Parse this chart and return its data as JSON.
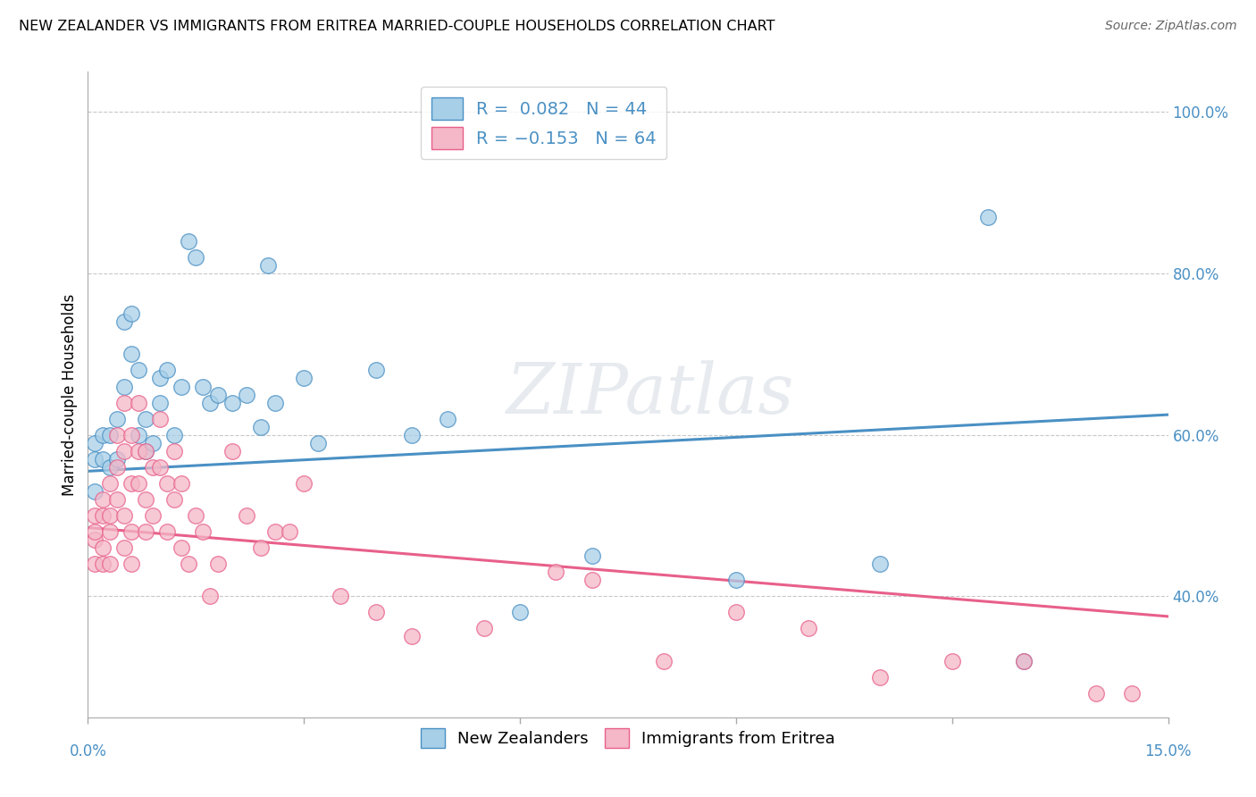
{
  "title": "NEW ZEALANDER VS IMMIGRANTS FROM ERITREA MARRIED-COUPLE HOUSEHOLDS CORRELATION CHART",
  "source": "Source: ZipAtlas.com",
  "ylabel": "Married-couple Households",
  "legend_label1": "R =  0.082   N = 44",
  "legend_label2": "R = −0.153   N = 64",
  "legend_bottom1": "New Zealanders",
  "legend_bottom2": "Immigrants from Eritrea",
  "color_blue": "#a8cfe8",
  "color_pink": "#f4b8c8",
  "color_blue_line": "#4a90c4",
  "color_pink_line": "#e8608a",
  "color_blue_dark": "#4a90c4",
  "color_pink_dark": "#e8608a",
  "xlim": [
    0.0,
    0.15
  ],
  "ylim": [
    0.25,
    1.05
  ],
  "blue_x": [
    0.001,
    0.001,
    0.001,
    0.002,
    0.002,
    0.003,
    0.003,
    0.004,
    0.004,
    0.005,
    0.005,
    0.006,
    0.006,
    0.007,
    0.007,
    0.008,
    0.008,
    0.009,
    0.01,
    0.01,
    0.011,
    0.012,
    0.013,
    0.014,
    0.015,
    0.016,
    0.017,
    0.018,
    0.02,
    0.022,
    0.024,
    0.025,
    0.026,
    0.03,
    0.032,
    0.04,
    0.045,
    0.05,
    0.06,
    0.07,
    0.09,
    0.11,
    0.125,
    0.13
  ],
  "blue_y": [
    0.57,
    0.53,
    0.59,
    0.6,
    0.57,
    0.56,
    0.6,
    0.57,
    0.62,
    0.66,
    0.74,
    0.7,
    0.75,
    0.68,
    0.6,
    0.58,
    0.62,
    0.59,
    0.67,
    0.64,
    0.68,
    0.6,
    0.66,
    0.84,
    0.82,
    0.66,
    0.64,
    0.65,
    0.64,
    0.65,
    0.61,
    0.81,
    0.64,
    0.67,
    0.59,
    0.68,
    0.6,
    0.62,
    0.38,
    0.45,
    0.42,
    0.44,
    0.87,
    0.32
  ],
  "pink_x": [
    0.001,
    0.001,
    0.001,
    0.001,
    0.002,
    0.002,
    0.002,
    0.002,
    0.003,
    0.003,
    0.003,
    0.003,
    0.004,
    0.004,
    0.004,
    0.005,
    0.005,
    0.005,
    0.005,
    0.006,
    0.006,
    0.006,
    0.006,
    0.007,
    0.007,
    0.007,
    0.008,
    0.008,
    0.008,
    0.009,
    0.009,
    0.01,
    0.01,
    0.011,
    0.011,
    0.012,
    0.012,
    0.013,
    0.013,
    0.014,
    0.015,
    0.016,
    0.017,
    0.018,
    0.02,
    0.022,
    0.024,
    0.026,
    0.028,
    0.03,
    0.035,
    0.04,
    0.045,
    0.055,
    0.065,
    0.07,
    0.08,
    0.09,
    0.1,
    0.11,
    0.12,
    0.13,
    0.14,
    0.145
  ],
  "pink_y": [
    0.47,
    0.5,
    0.44,
    0.48,
    0.5,
    0.52,
    0.46,
    0.44,
    0.54,
    0.48,
    0.44,
    0.5,
    0.56,
    0.6,
    0.52,
    0.64,
    0.58,
    0.5,
    0.46,
    0.6,
    0.54,
    0.48,
    0.44,
    0.64,
    0.58,
    0.54,
    0.58,
    0.52,
    0.48,
    0.56,
    0.5,
    0.62,
    0.56,
    0.54,
    0.48,
    0.58,
    0.52,
    0.54,
    0.46,
    0.44,
    0.5,
    0.48,
    0.4,
    0.44,
    0.58,
    0.5,
    0.46,
    0.48,
    0.48,
    0.54,
    0.4,
    0.38,
    0.35,
    0.36,
    0.43,
    0.42,
    0.32,
    0.38,
    0.36,
    0.3,
    0.32,
    0.32,
    0.28,
    0.28
  ],
  "blue_line_x0": 0.0,
  "blue_line_y0": 0.555,
  "blue_line_x1": 0.15,
  "blue_line_y1": 0.625,
  "pink_line_x0": 0.0,
  "pink_line_y0": 0.485,
  "pink_line_x1": 0.15,
  "pink_line_y1": 0.375,
  "watermark": "ZIPatlas",
  "background_color": "#ffffff",
  "grid_color": "#c8c8c8",
  "yticks": [
    0.4,
    0.6,
    0.8,
    1.0
  ],
  "ytick_labels": [
    "40.0%",
    "60.0%",
    "80.0%",
    "100.0%"
  ],
  "xtick_positions": [
    0.0,
    0.03,
    0.06,
    0.09,
    0.12,
    0.15
  ]
}
